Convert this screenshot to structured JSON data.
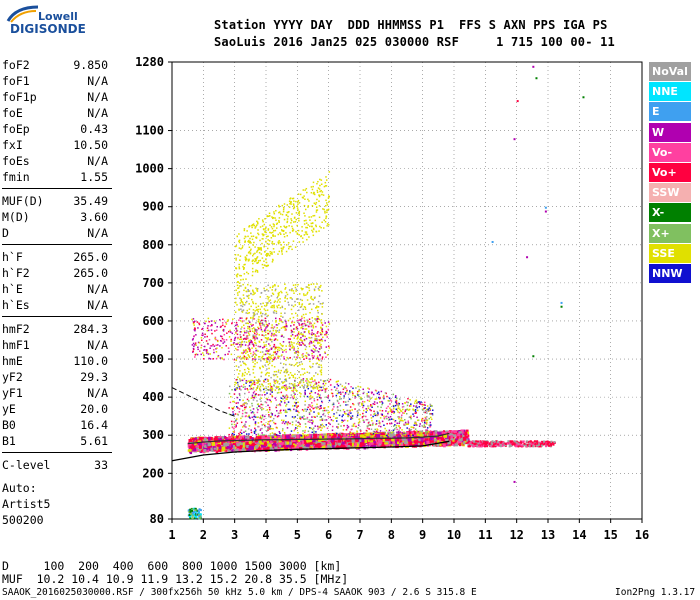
{
  "logo": {
    "top": "Lowell",
    "main": "DIGISONDE"
  },
  "header": {
    "line1": "Station YYYY DAY  DDD HHMMSS P1  FFS S AXN PPS IGA PS",
    "line2": "SaoLuis 2016 Jan25 025 030000 RSF     1 715 100 00- 11"
  },
  "params": [
    {
      "name": "foF2",
      "value": "9.850"
    },
    {
      "name": "foF1",
      "value": "N/A"
    },
    {
      "name": "foF1p",
      "value": "N/A"
    },
    {
      "name": "foE",
      "value": "N/A"
    },
    {
      "name": "foEp",
      "value": "0.43"
    },
    {
      "name": "fxI",
      "value": "10.50"
    },
    {
      "name": "foEs",
      "value": "N/A"
    },
    {
      "name": "fmin",
      "value": "1.55"
    },
    {
      "name": "MUF(D)",
      "value": "35.49"
    },
    {
      "name": "M(D)",
      "value": "3.60"
    },
    {
      "name": "D",
      "value": "N/A"
    },
    {
      "name": "h`F",
      "value": "265.0"
    },
    {
      "name": "h`F2",
      "value": "265.0"
    },
    {
      "name": "h`E",
      "value": "N/A"
    },
    {
      "name": "h`Es",
      "value": "N/A"
    },
    {
      "name": "hmF2",
      "value": "284.3"
    },
    {
      "name": "hmF1",
      "value": "N/A"
    },
    {
      "name": "hmE",
      "value": "110.0"
    },
    {
      "name": "yF2",
      "value": "29.3"
    },
    {
      "name": "yF1",
      "value": "N/A"
    },
    {
      "name": "yE",
      "value": "20.0"
    },
    {
      "name": "B0",
      "value": "16.4"
    },
    {
      "name": "B1",
      "value": "5.61"
    },
    {
      "name": "C-level",
      "value": "33"
    }
  ],
  "autoscale": {
    "line1": "Auto:",
    "line2": "Artist5",
    "line3": "500200"
  },
  "legend": [
    {
      "label": "NoVal",
      "color": "#a0a0a0"
    },
    {
      "label": "NNE",
      "color": "#00e5ff"
    },
    {
      "label": "E",
      "color": "#3fa0f0"
    },
    {
      "label": "W",
      "color": "#b000b0"
    },
    {
      "label": "Vo-",
      "color": "#ff40a0"
    },
    {
      "label": "Vo+",
      "color": "#ff0040"
    },
    {
      "label": "SSW",
      "color": "#f5b0b0"
    },
    {
      "label": "X-",
      "color": "#008000"
    },
    {
      "label": "X+",
      "color": "#80c060"
    },
    {
      "label": "SSE",
      "color": "#e0e000"
    },
    {
      "label": "NNW",
      "color": "#1010d0"
    }
  ],
  "bottom": {
    "d_row": "D     100  200  400  600  800 1000 1500 3000 [km]",
    "muf_row": "MUF  10.2 10.4 10.9 11.9 13.2 15.2 20.8 35.5 [MHz]"
  },
  "footer": {
    "left": "SAAOK_2016025030000.RSF / 300fx256h 50 kHz 5.0 km / DPS-4 SAAOK 903 / 2.6 S 315.8 E",
    "right": "Ion2Png 1.3.17"
  },
  "chart_data": {
    "type": "scatter",
    "title": "",
    "xlabel": "",
    "ylabel": "",
    "xlim": [
      1,
      16
    ],
    "ylim": [
      80,
      1280
    ],
    "x_ticks": [
      1,
      2,
      3,
      4,
      5,
      6,
      7,
      8,
      9,
      10,
      11,
      12,
      13,
      14,
      15,
      16
    ],
    "y_ticks": [
      80,
      200,
      300,
      400,
      500,
      600,
      700,
      800,
      900,
      1000,
      1100,
      1280
    ],
    "grid": true,
    "legend_position": "right",
    "o_trace": {
      "x": [
        1.5,
        2,
        2.5,
        3,
        3.5,
        4,
        4.5,
        5,
        5.5,
        6,
        6.5,
        7,
        7.5,
        8,
        8.5,
        9,
        9.5,
        9.85
      ],
      "y": [
        278,
        282,
        285,
        286,
        287,
        288,
        288,
        289,
        289,
        290,
        290,
        291,
        292,
        292,
        293,
        295,
        298,
        305
      ]
    },
    "profile_line": {
      "x": [
        1,
        2,
        3,
        4,
        5,
        6,
        7,
        8,
        9,
        9.85
      ],
      "y": [
        233,
        248,
        256,
        260,
        263,
        265,
        267,
        269,
        272,
        284
      ]
    },
    "x_mode_dashed": {
      "x": [
        1.0,
        1.5,
        2.0,
        2.5,
        3.0
      ],
      "y": [
        425,
        405,
        385,
        365,
        350
      ]
    },
    "echo_regions": [
      {
        "name": "F-trace main band",
        "xrange": [
          1.5,
          10.4
        ],
        "yrange": [
          270,
          310
        ]
      },
      {
        "name": "F-trace extension",
        "xrange": [
          10.4,
          13.2
        ],
        "yrange": [
          275,
          292
        ]
      },
      {
        "name": "Spread F 3-6 MHz",
        "xrange": [
          2.8,
          6.0
        ],
        "yrange": [
          300,
          450
        ]
      },
      {
        "name": "Spread F upper",
        "xrange": [
          2.5,
          6.0
        ],
        "yrange": [
          500,
          620
        ]
      },
      {
        "name": "Multihop 3-6 MHz",
        "xrange": [
          3.0,
          6.0
        ],
        "yrange": [
          750,
          960
        ]
      },
      {
        "name": "Low-altitude 2 MHz",
        "xrange": [
          1.5,
          1.9
        ],
        "yrange": [
          80,
          110
        ]
      }
    ]
  }
}
